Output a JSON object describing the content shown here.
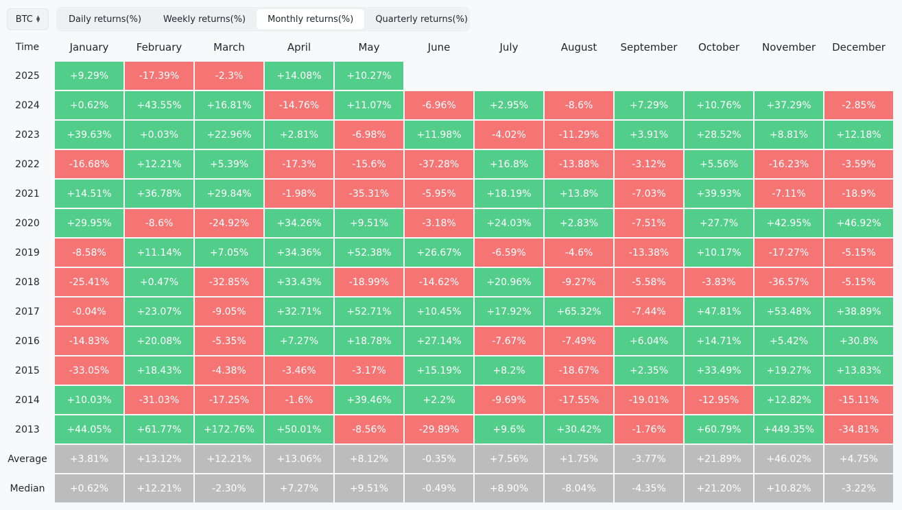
{
  "asset_select": {
    "value": "BTC"
  },
  "tabs": [
    {
      "label": "Daily returns(%)",
      "active": false
    },
    {
      "label": "Weekly returns(%)",
      "active": false
    },
    {
      "label": "Monthly returns(%)",
      "active": true
    },
    {
      "label": "Quarterly returns(%)",
      "active": false
    }
  ],
  "table": {
    "corner": "Time",
    "months": [
      "January",
      "February",
      "March",
      "April",
      "May",
      "June",
      "July",
      "August",
      "September",
      "October",
      "November",
      "December"
    ],
    "rows": [
      {
        "label": "2025",
        "values": [
          "+9.29%",
          "-17.39%",
          "-2.3%",
          "+14.08%",
          "+10.27%",
          "",
          "",
          "",
          "",
          "",
          "",
          ""
        ]
      },
      {
        "label": "2024",
        "values": [
          "+0.62%",
          "+43.55%",
          "+16.81%",
          "-14.76%",
          "+11.07%",
          "-6.96%",
          "+2.95%",
          "-8.6%",
          "+7.29%",
          "+10.76%",
          "+37.29%",
          "-2.85%"
        ]
      },
      {
        "label": "2023",
        "values": [
          "+39.63%",
          "+0.03%",
          "+22.96%",
          "+2.81%",
          "-6.98%",
          "+11.98%",
          "-4.02%",
          "-11.29%",
          "+3.91%",
          "+28.52%",
          "+8.81%",
          "+12.18%"
        ]
      },
      {
        "label": "2022",
        "values": [
          "-16.68%",
          "+12.21%",
          "+5.39%",
          "-17.3%",
          "-15.6%",
          "-37.28%",
          "+16.8%",
          "-13.88%",
          "-3.12%",
          "+5.56%",
          "-16.23%",
          "-3.59%"
        ]
      },
      {
        "label": "2021",
        "values": [
          "+14.51%",
          "+36.78%",
          "+29.84%",
          "-1.98%",
          "-35.31%",
          "-5.95%",
          "+18.19%",
          "+13.8%",
          "-7.03%",
          "+39.93%",
          "-7.11%",
          "-18.9%"
        ]
      },
      {
        "label": "2020",
        "values": [
          "+29.95%",
          "-8.6%",
          "-24.92%",
          "+34.26%",
          "+9.51%",
          "-3.18%",
          "+24.03%",
          "+2.83%",
          "-7.51%",
          "+27.7%",
          "+42.95%",
          "+46.92%"
        ]
      },
      {
        "label": "2019",
        "values": [
          "-8.58%",
          "+11.14%",
          "+7.05%",
          "+34.36%",
          "+52.38%",
          "+26.67%",
          "-6.59%",
          "-4.6%",
          "-13.38%",
          "+10.17%",
          "-17.27%",
          "-5.15%"
        ]
      },
      {
        "label": "2018",
        "values": [
          "-25.41%",
          "+0.47%",
          "-32.85%",
          "+33.43%",
          "-18.99%",
          "-14.62%",
          "+20.96%",
          "-9.27%",
          "-5.58%",
          "-3.83%",
          "-36.57%",
          "-5.15%"
        ]
      },
      {
        "label": "2017",
        "values": [
          "-0.04%",
          "+23.07%",
          "-9.05%",
          "+32.71%",
          "+52.71%",
          "+10.45%",
          "+17.92%",
          "+65.32%",
          "-7.44%",
          "+47.81%",
          "+53.48%",
          "+38.89%"
        ]
      },
      {
        "label": "2016",
        "values": [
          "-14.83%",
          "+20.08%",
          "-5.35%",
          "+7.27%",
          "+18.78%",
          "+27.14%",
          "-7.67%",
          "-7.49%",
          "+6.04%",
          "+14.71%",
          "+5.42%",
          "+30.8%"
        ]
      },
      {
        "label": "2015",
        "values": [
          "-33.05%",
          "+18.43%",
          "-4.38%",
          "-3.46%",
          "-3.17%",
          "+15.19%",
          "+8.2%",
          "-18.67%",
          "+2.35%",
          "+33.49%",
          "+19.27%",
          "+13.83%"
        ]
      },
      {
        "label": "2014",
        "values": [
          "+10.03%",
          "-31.03%",
          "-17.25%",
          "-1.6%",
          "+39.46%",
          "+2.2%",
          "-9.69%",
          "-17.55%",
          "-19.01%",
          "-12.95%",
          "+12.82%",
          "-15.11%"
        ]
      },
      {
        "label": "2013",
        "values": [
          "+44.05%",
          "+61.77%",
          "+172.76%",
          "+50.01%",
          "-8.56%",
          "-29.89%",
          "+9.6%",
          "+30.42%",
          "-1.76%",
          "+60.79%",
          "+449.35%",
          "-34.81%"
        ]
      }
    ],
    "summary": [
      {
        "label": "Average",
        "values": [
          "+3.81%",
          "+13.12%",
          "+12.21%",
          "+13.06%",
          "+8.12%",
          "-0.35%",
          "+7.56%",
          "+1.75%",
          "-3.77%",
          "+21.89%",
          "+46.02%",
          "+4.75%"
        ]
      },
      {
        "label": "Median",
        "values": [
          "+0.62%",
          "+12.21%",
          "-2.30%",
          "+7.27%",
          "+9.51%",
          "-0.49%",
          "+8.90%",
          "-8.04%",
          "-4.35%",
          "+21.20%",
          "+10.82%",
          "-3.22%"
        ]
      }
    ]
  },
  "colors": {
    "positive": "#53cd8a",
    "negative": "#f57575",
    "summary": "#bcbcbc"
  }
}
